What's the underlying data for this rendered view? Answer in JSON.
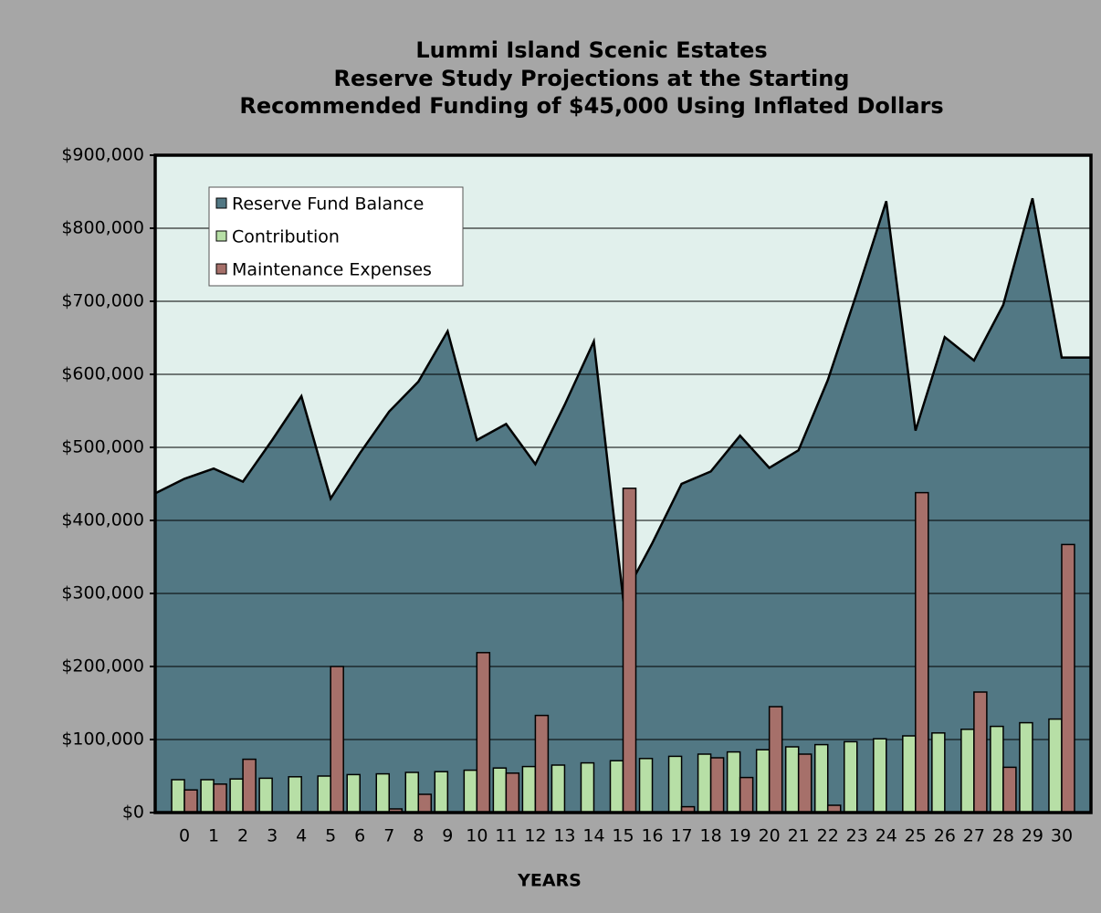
{
  "chart_data": {
    "type": "area-bar",
    "title": [
      "Lummi Island Scenic Estates",
      "Reserve Study Projections at the Starting",
      "Recommended Funding of $45,000 Using Inflated Dollars"
    ],
    "x_label": "YEARS",
    "categories": [
      null,
      "0",
      "1",
      "2",
      "3",
      "4",
      "5",
      "6",
      "7",
      "8",
      "9",
      "10",
      "11",
      "12",
      "13",
      "14",
      "15",
      "16",
      "17",
      "18",
      "19",
      "20",
      "21",
      "22",
      "23",
      "24",
      "25",
      "26",
      "27",
      "28",
      "29",
      "30",
      null
    ],
    "series": [
      {
        "name": "Reserve Fund Balance",
        "color": "#527884",
        "kind": "area",
        "values": [
          437000,
          457000,
          471000,
          453000,
          510000,
          570000,
          430000,
          492000,
          549000,
          590000,
          659000,
          510000,
          532000,
          477000,
          558000,
          645000,
          294000,
          369000,
          450000,
          467000,
          516000,
          472000,
          496000,
          592000,
          712000,
          837000,
          523000,
          651000,
          619000,
          695000,
          841000,
          623000,
          623000
        ]
      },
      {
        "name": "Contribution",
        "color": "#b7dfa6",
        "kind": "bar",
        "values": [
          null,
          45000,
          45000,
          46000,
          47000,
          49000,
          50000,
          52000,
          53000,
          55000,
          56000,
          58000,
          61000,
          63000,
          65000,
          68000,
          71000,
          74000,
          77000,
          80000,
          83000,
          86000,
          90000,
          93000,
          97000,
          101000,
          105000,
          109000,
          114000,
          118000,
          123000,
          128000,
          null
        ]
      },
      {
        "name": "Maintenance Expenses",
        "color": "#a6706a",
        "kind": "bar",
        "values": [
          null,
          31000,
          39000,
          73000,
          null,
          null,
          200000,
          null,
          5000,
          25000,
          null,
          219000,
          54000,
          133000,
          null,
          null,
          444000,
          null,
          8000,
          75000,
          48000,
          145000,
          80000,
          10000,
          null,
          null,
          438000,
          null,
          165000,
          62000,
          null,
          367000,
          null
        ]
      }
    ],
    "ylim": [
      0,
      900000
    ],
    "yticks": [
      {
        "value": 0,
        "label": "$0"
      },
      {
        "value": 100000,
        "label": "$100,000"
      },
      {
        "value": 200000,
        "label": "$200,000"
      },
      {
        "value": 300000,
        "label": "$300,000"
      },
      {
        "value": 400000,
        "label": "$400,000"
      },
      {
        "value": 500000,
        "label": "$500,000"
      },
      {
        "value": 600000,
        "label": "$600,000"
      },
      {
        "value": 700000,
        "label": "$700,000"
      },
      {
        "value": 800000,
        "label": "$800,000"
      },
      {
        "value": 900000,
        "label": "$900,000"
      }
    ],
    "grid": true,
    "legend": "upper left",
    "plot_background": "#e1f0ec"
  }
}
